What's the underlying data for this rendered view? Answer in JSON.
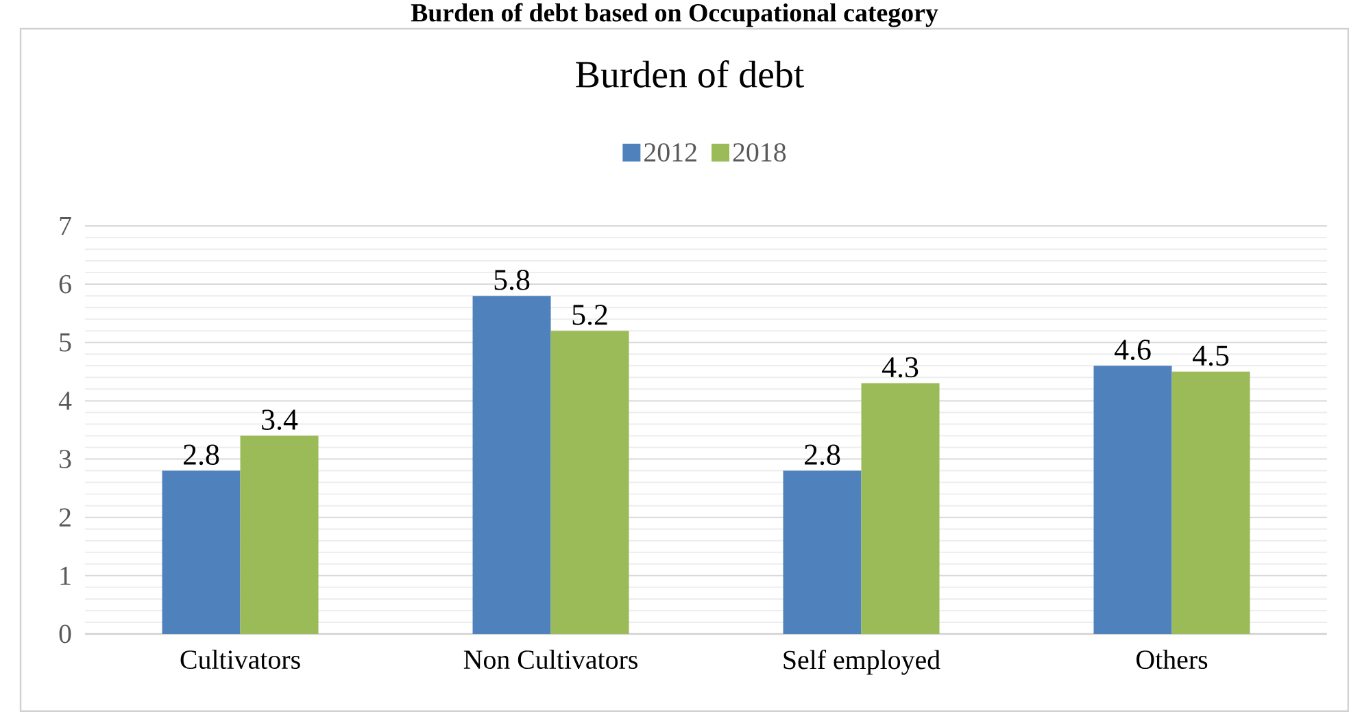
{
  "chart_data": {
    "type": "bar",
    "title": "Burden of debt based on Occupational category",
    "subtitle": "Burden of debt",
    "categories": [
      "Cultivators",
      "Non Cultivators",
      "Self employed",
      "Others"
    ],
    "series": [
      {
        "name": "2012",
        "color": "#4f81bd",
        "values": [
          2.8,
          5.8,
          2.8,
          4.6
        ]
      },
      {
        "name": "2018",
        "color": "#9bbb59",
        "values": [
          3.4,
          5.2,
          4.3,
          4.5
        ]
      }
    ],
    "ylim": [
      0,
      7
    ],
    "yticks": [
      0,
      1,
      2,
      3,
      4,
      5,
      6,
      7
    ],
    "grid": "y",
    "legend": "top",
    "data_labels": true
  }
}
